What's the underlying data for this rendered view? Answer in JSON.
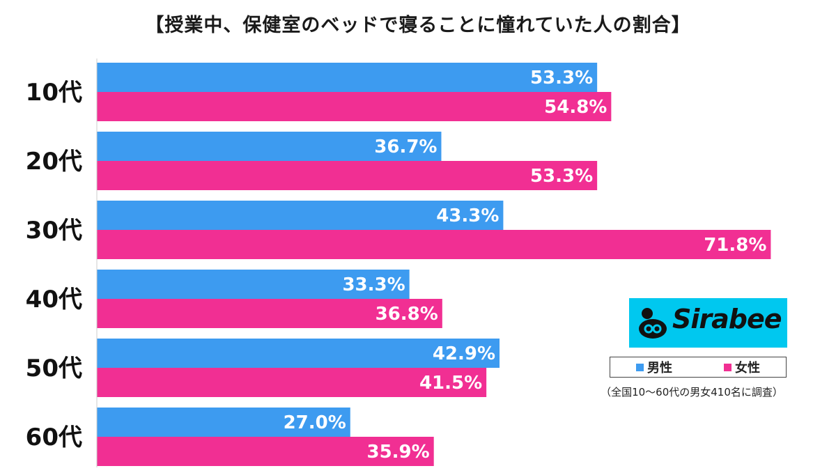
{
  "title": "【授業中、保健室のベッドで寝ることに憧れていた人の割合】",
  "note": "（全国10〜60代の男女410名に調査）",
  "logo": {
    "text": "Sirabee"
  },
  "colors": {
    "male": "#3d9bf0",
    "female": "#f12f93",
    "logo_bg": "#00c8ef"
  },
  "chart_data": {
    "type": "bar",
    "orientation": "horizontal",
    "title": "【授業中、保健室のベッドで寝ることに憧れていた人の割合】",
    "categories": [
      "10代",
      "20代",
      "30代",
      "40代",
      "50代",
      "60代"
    ],
    "series": [
      {
        "name": "男性",
        "values": [
          53.3,
          36.7,
          43.3,
          33.3,
          42.9,
          27.0
        ],
        "labels": [
          "53.3%",
          "36.7%",
          "43.3%",
          "33.3%",
          "42.9%",
          "27.0%"
        ]
      },
      {
        "name": "女性",
        "values": [
          54.8,
          53.3,
          71.8,
          36.8,
          41.5,
          35.9
        ],
        "labels": [
          "54.8%",
          "53.3%",
          "71.8%",
          "36.8%",
          "41.5%",
          "35.9%"
        ]
      }
    ],
    "xlim": [
      0,
      76
    ],
    "grid": false,
    "legend_position": "bottom-right",
    "xlabel": "",
    "ylabel": ""
  }
}
